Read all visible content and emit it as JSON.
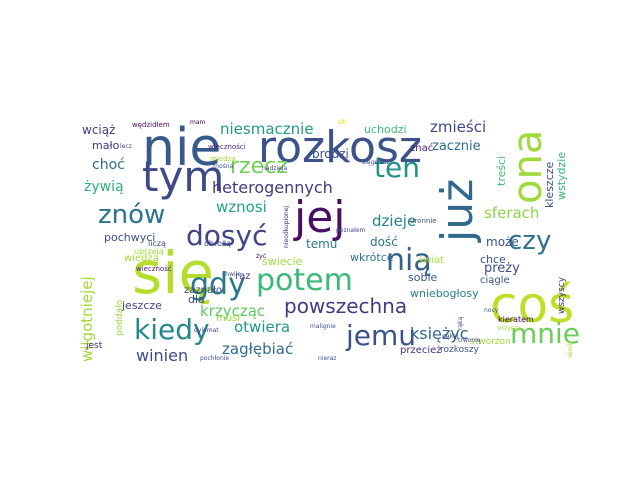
{
  "words": [
    {
      "text": "się",
      "color": "#b5de2b"
    },
    {
      "text": "coś",
      "color": "#bddf26"
    },
    {
      "text": "rozkosz",
      "color": "#3b528b"
    },
    {
      "text": "nie",
      "color": "#38598c"
    },
    {
      "text": "już",
      "color": "#31688e"
    },
    {
      "text": "tym",
      "color": "#3e4989"
    },
    {
      "text": "jej",
      "color": "#471063"
    },
    {
      "text": "ona",
      "color": "#9fda3a"
    },
    {
      "text": "gdy",
      "color": "#2a788e"
    },
    {
      "text": "potem",
      "color": "#3aba76"
    },
    {
      "text": "nią",
      "color": "#355f8d"
    },
    {
      "text": "jemu",
      "color": "#3b528b"
    },
    {
      "text": "kiedy",
      "color": "#23898e"
    },
    {
      "text": "mnie",
      "color": "#6ccd5a"
    },
    {
      "text": "dosyć",
      "color": "#414487"
    },
    {
      "text": "znów",
      "color": "#2c718e"
    },
    {
      "text": "ten",
      "color": "#21918c"
    },
    {
      "text": "czy",
      "color": "#2d708e"
    },
    {
      "text": "rzecz",
      "color": "#73d056"
    },
    {
      "text": "powszechna",
      "color": "#443a83"
    },
    {
      "text": "heterogennych",
      "color": "#453781"
    },
    {
      "text": "niesmacznie",
      "color": "#1f9a8a"
    },
    {
      "text": "wznosi",
      "color": "#20a386"
    },
    {
      "text": "zmieści",
      "color": "#404688"
    },
    {
      "text": "sferach",
      "color": "#8bd646"
    },
    {
      "text": "dzieje",
      "color": "#26828e"
    },
    {
      "text": "otwiera",
      "color": "#1f968b"
    },
    {
      "text": "krzycząc",
      "color": "#5ec962"
    },
    {
      "text": "winien",
      "color": "#3e4989"
    },
    {
      "text": "zagłębiać",
      "color": "#2f6c8e"
    },
    {
      "text": "księżyc",
      "color": "#30678d"
    },
    {
      "text": "wilgotniejej",
      "color": "#a2da37"
    },
    {
      "text": "żywią",
      "color": "#29af7f"
    },
    {
      "text": "choć",
      "color": "#2e6e8e"
    },
    {
      "text": "wciąż",
      "color": "#443983"
    },
    {
      "text": "mało",
      "color": "#46327e"
    },
    {
      "text": "pochwyci",
      "color": "#3c4f8a"
    },
    {
      "text": "temu",
      "color": "#287c8e"
    },
    {
      "text": "dość",
      "color": "#2c738e"
    },
    {
      "text": "może",
      "color": "#3a538b"
    },
    {
      "text": "chce",
      "color": "#3b528b"
    },
    {
      "text": "preży",
      "color": "#3d4d8a"
    },
    {
      "text": "zacznie",
      "color": "#2e6d8e"
    },
    {
      "text": "treści",
      "color": "#44bf70"
    },
    {
      "text": "kleszcze",
      "color": "#3d4e8a"
    },
    {
      "text": "wstydzie",
      "color": "#31b57b"
    },
    {
      "text": "brodzi",
      "color": "#3b528b"
    },
    {
      "text": "uchodzi",
      "color": "#3aba76"
    },
    {
      "text": "znać",
      "color": "#482374"
    },
    {
      "text": "wiedzą",
      "color": "#a8db34"
    },
    {
      "text": "jeszcze",
      "color": "#414487"
    },
    {
      "text": "dla",
      "color": "#3f4788"
    },
    {
      "text": "raz",
      "color": "#443983"
    },
    {
      "text": "zaznało",
      "color": "#3e4a89"
    },
    {
      "text": "musi",
      "color": "#9dd93b"
    },
    {
      "text": "świecie",
      "color": "#9bd93c"
    },
    {
      "text": "wkrótce",
      "color": "#2a768e"
    },
    {
      "text": "świat",
      "color": "#a8db34"
    },
    {
      "text": "sobie",
      "color": "#38598c"
    },
    {
      "text": "wniebogłosy",
      "color": "#277f8e"
    },
    {
      "text": "ciągle",
      "color": "#3b528b"
    },
    {
      "text": "wszyscy",
      "color": "#46317e"
    },
    {
      "text": "przecież",
      "color": "#472f7d"
    },
    {
      "text": "rozkoszy",
      "color": "#3b528b"
    },
    {
      "text": "stworzon",
      "color": "#a0da39"
    },
    {
      "text": "poddało",
      "color": "#9bd93c"
    },
    {
      "text": "jest",
      "color": "#472c7a"
    },
    {
      "text": "uprzeją",
      "color": "#a2da37"
    },
    {
      "text": "wieczność",
      "color": "#482071"
    },
    {
      "text": "wędzidłem",
      "color": "#471063"
    },
    {
      "text": "mam",
      "color": "#440154"
    },
    {
      "text": "wieczności",
      "color": "#482677"
    },
    {
      "text": "miedzą",
      "color": "#a5db36"
    },
    {
      "text": "znośna",
      "color": "#3b528b"
    },
    {
      "text": "nadzieja",
      "color": "#414487"
    },
    {
      "text": "sięgniesz",
      "color": "#3b528b"
    },
    {
      "text": "siłi",
      "color": "#dde318"
    },
    {
      "text": "uronnie",
      "color": "#3b528b"
    },
    {
      "text": "poznałem",
      "color": "#414487"
    },
    {
      "text": "nieodkupionej",
      "color": "#472a7a"
    },
    {
      "text": "liczą",
      "color": "#3b528b"
    },
    {
      "text": "obrożą",
      "color": "#414487"
    },
    {
      "text": "żyć",
      "color": "#440154"
    },
    {
      "text": "chwile",
      "color": "#3b528b"
    },
    {
      "text": "dylemat",
      "color": "#414487"
    },
    {
      "text": "malignie",
      "color": "#3b528b"
    },
    {
      "text": "rąką",
      "color": "#3b528b"
    },
    {
      "text": "nękąj",
      "color": "#414487"
    },
    {
      "text": "trwonię",
      "color": "#414487"
    },
    {
      "text": "nocy",
      "color": "#3b528b"
    },
    {
      "text": "kieratem",
      "color": "#440154"
    },
    {
      "text": "krzyczą",
      "color": "#a0da39"
    },
    {
      "text": "wiedz",
      "color": "#a8db34"
    },
    {
      "text": "pochłonie",
      "color": "#3b528b"
    },
    {
      "text": "nieraz",
      "color": "#3b528b"
    },
    {
      "text": "lecz",
      "color": "#414487"
    }
  ]
}
